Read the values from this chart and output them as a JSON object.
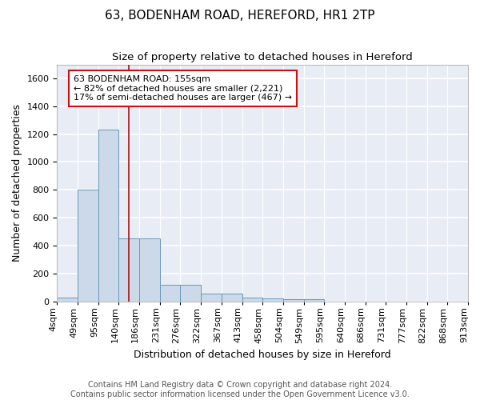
{
  "title1": "63, BODENHAM ROAD, HEREFORD, HR1 2TP",
  "title2": "Size of property relative to detached houses in Hereford",
  "xlabel": "Distribution of detached houses by size in Hereford",
  "ylabel": "Number of detached properties",
  "footer1": "Contains HM Land Registry data © Crown copyright and database right 2024.",
  "footer2": "Contains public sector information licensed under the Open Government Licence v3.0.",
  "bin_labels": [
    "4sqm",
    "49sqm",
    "95sqm",
    "140sqm",
    "186sqm",
    "231sqm",
    "276sqm",
    "322sqm",
    "367sqm",
    "413sqm",
    "458sqm",
    "504sqm",
    "549sqm",
    "595sqm",
    "640sqm",
    "686sqm",
    "731sqm",
    "777sqm",
    "822sqm",
    "868sqm",
    "913sqm"
  ],
  "bar_values": [
    25,
    800,
    1230,
    450,
    450,
    120,
    120,
    55,
    55,
    25,
    20,
    15,
    15,
    0,
    0,
    0,
    0,
    0,
    0,
    0
  ],
  "bar_color": "#ccd9e8",
  "bar_edge_color": "#6699bb",
  "background_color": "#e8edf5",
  "grid_color": "#ffffff",
  "vline_color": "#aa1111",
  "annotation_text": "63 BODENHAM ROAD: 155sqm\n← 82% of detached houses are smaller (2,221)\n17% of semi-detached houses are larger (467) →",
  "annotation_box_color": "#cc1111",
  "ylim": [
    0,
    1700
  ],
  "yticks": [
    0,
    200,
    400,
    600,
    800,
    1000,
    1200,
    1400,
    1600
  ],
  "title1_fontsize": 11,
  "title2_fontsize": 9.5,
  "xlabel_fontsize": 9,
  "ylabel_fontsize": 9,
  "tick_fontsize": 8,
  "annotation_fontsize": 8,
  "footer_fontsize": 7
}
